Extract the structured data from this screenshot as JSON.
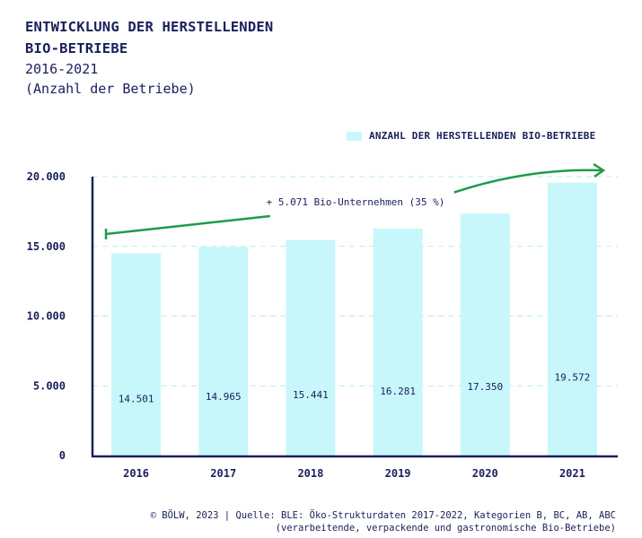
{
  "title_line1": "ENTWICKLUNG DER HERSTELLENDEN",
  "title_line2": "BIO-BETRIEBE",
  "subtitle_line1": "2016-2021",
  "subtitle_line2": "(Anzahl der Betriebe)",
  "source_line1": "© BÖLW, 2023 | Quelle: BLE: Öko-Strukturdaten 2017-2022, Kategorien B, BC, AB, ABC",
  "source_line2": "(verarbeitende, verpackende und gastronomische Bio-Betriebe)",
  "colors": {
    "bar": "#c7f7fa",
    "axis": "#1a1f5c",
    "arrow": "#1e9b4b",
    "grid": "#b9ede4"
  },
  "chart_data": {
    "type": "bar",
    "categories": [
      "2016",
      "2017",
      "2018",
      "2019",
      "2020",
      "2021"
    ],
    "series": [
      {
        "name": "ANZAHL DER HERSTELLENDEN BIO-BETRIEBE",
        "values": [
          14501,
          14965,
          15441,
          16281,
          17350,
          19572
        ],
        "value_labels": [
          "14.501",
          "14.965",
          "15.441",
          "16.281",
          "17.350",
          "19.572"
        ]
      }
    ],
    "yticks": [
      0,
      5000,
      10000,
      15000,
      20000
    ],
    "ytick_labels": [
      "0",
      "5.000",
      "10.000",
      "15.000",
      "20.000"
    ],
    "ylim": [
      0,
      20000
    ],
    "grid": true,
    "legend_position": "top-right",
    "annotation": {
      "text": "+ 5.071 Bio-Unternehmen (35 %)",
      "from": "2016",
      "to": "2021",
      "style": "arrow"
    }
  }
}
